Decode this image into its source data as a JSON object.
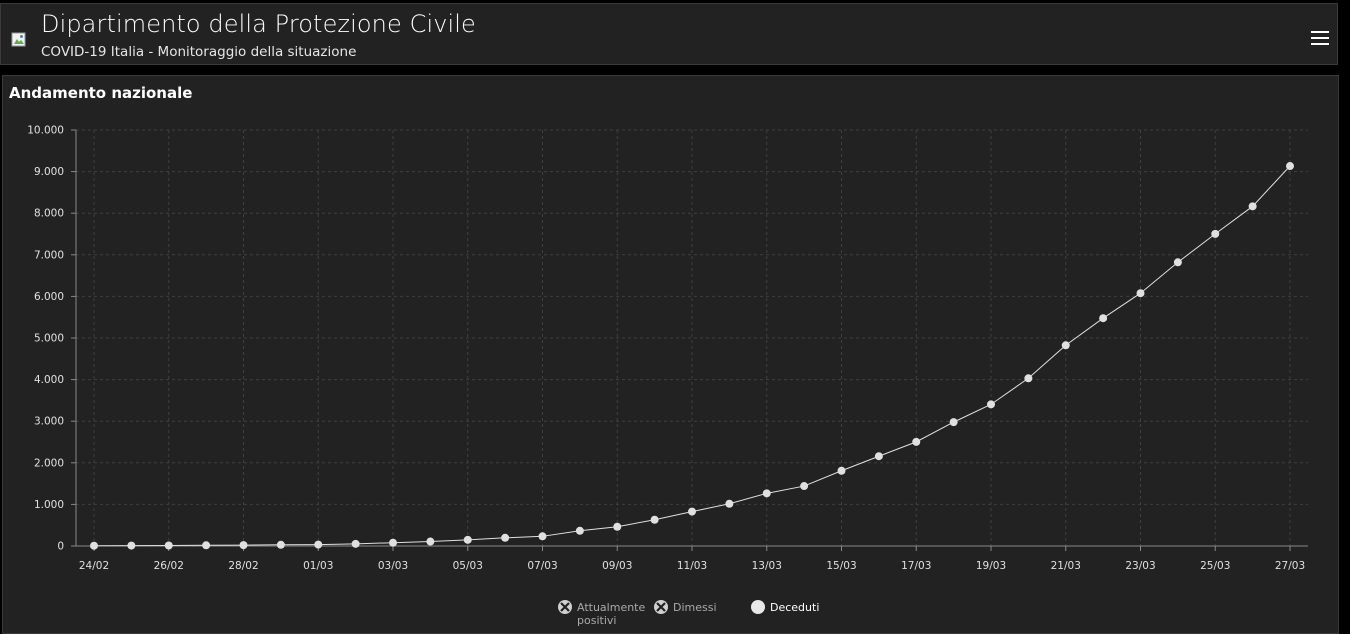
{
  "header": {
    "title": "Dipartimento della Protezione Civile",
    "subtitle": "COVID-19 Italia - Monitoraggio della situazione",
    "menu_icon": "hamburger-menu-icon",
    "logo_icon": "broken-image-icon"
  },
  "panel": {
    "title": "Andamento nazionale"
  },
  "chart_data": {
    "type": "line",
    "title": "Andamento nazionale",
    "xlabel": "",
    "ylabel": "",
    "ylim": [
      0,
      10000
    ],
    "y_ticks": [
      "0",
      "1.000",
      "2.000",
      "3.000",
      "4.000",
      "5.000",
      "6.000",
      "7.000",
      "8.000",
      "9.000",
      "10.000"
    ],
    "x_tick_labels": [
      "24/02",
      "26/02",
      "28/02",
      "01/03",
      "03/03",
      "05/03",
      "07/03",
      "09/03",
      "11/03",
      "13/03",
      "15/03",
      "17/03",
      "19/03",
      "21/03",
      "23/03",
      "25/03",
      "27/03"
    ],
    "categories": [
      "24/02",
      "25/02",
      "26/02",
      "27/02",
      "28/02",
      "29/02",
      "01/03",
      "02/03",
      "03/03",
      "04/03",
      "05/03",
      "06/03",
      "07/03",
      "08/03",
      "09/03",
      "10/03",
      "11/03",
      "12/03",
      "13/03",
      "14/03",
      "15/03",
      "16/03",
      "17/03",
      "18/03",
      "19/03",
      "20/03",
      "21/03",
      "22/03",
      "23/03",
      "24/03",
      "25/03",
      "26/03",
      "27/03"
    ],
    "grid": true,
    "legend_position": "bottom-center",
    "series": [
      {
        "name": "Deceduti",
        "color": "#e0e0e0",
        "visible": true,
        "values": [
          7,
          10,
          12,
          17,
          21,
          29,
          34,
          52,
          79,
          107,
          148,
          197,
          233,
          366,
          463,
          631,
          827,
          1016,
          1266,
          1441,
          1809,
          2158,
          2503,
          2978,
          3405,
          4032,
          4825,
          5476,
          6077,
          6820,
          7503,
          8165,
          9134
        ]
      }
    ],
    "legend": [
      {
        "label": "Attualmente positivi",
        "line1": "Attualmente",
        "line2": "positivi",
        "visible": false,
        "icon": "disabled-x-circle-icon"
      },
      {
        "label": "Dimessi",
        "line1": "Dimessi",
        "line2": "",
        "visible": false,
        "icon": "disabled-x-circle-icon"
      },
      {
        "label": "Deceduti",
        "line1": "Deceduti",
        "line2": "",
        "visible": true,
        "icon": "filled-circle-icon"
      }
    ]
  }
}
